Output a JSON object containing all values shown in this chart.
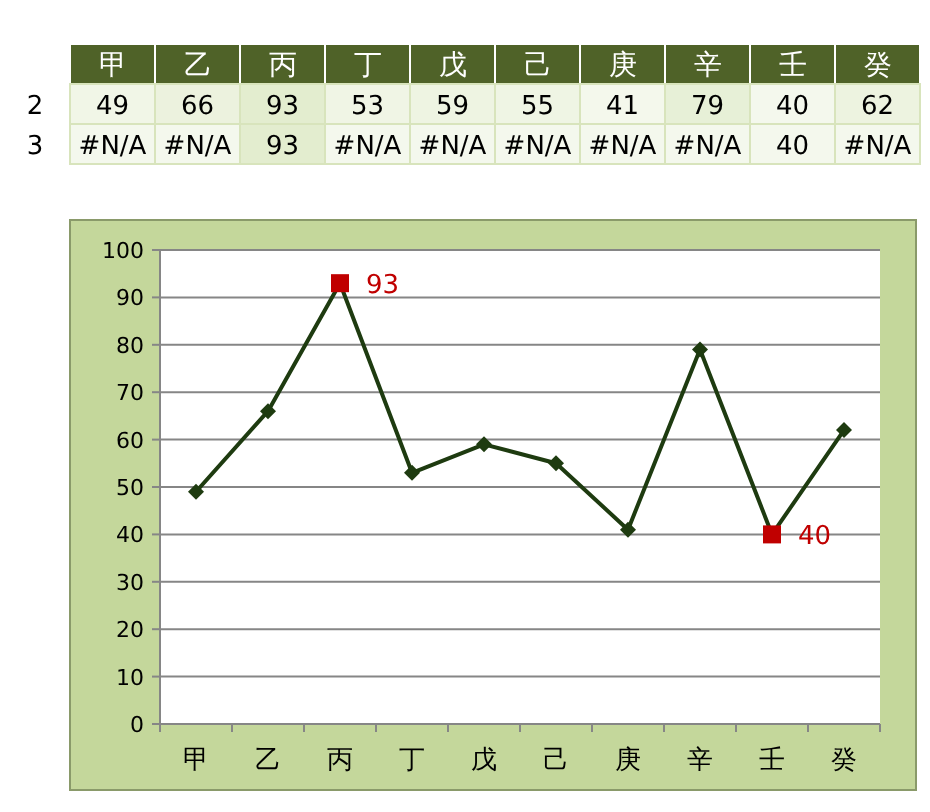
{
  "chart_data": [
    {
      "type": "heatmap",
      "categories": [
        "甲",
        "乙",
        "丙",
        "丁",
        "戊",
        "己",
        "庚",
        "辛",
        "壬",
        "癸"
      ],
      "y_categories": [
        "2",
        "3"
      ],
      "cells": [
        [
          49,
          66,
          93,
          53,
          59,
          55,
          41,
          79,
          40,
          62
        ],
        [
          null,
          null,
          93,
          null,
          null,
          null,
          null,
          null,
          40,
          null
        ]
      ],
      "cell_labels": [
        [
          "49",
          "66",
          "93",
          "53",
          "59",
          "55",
          "41",
          "79",
          "40",
          "62"
        ],
        [
          "#N/A",
          "#N/A",
          "93",
          "#N/A",
          "#N/A",
          "#N/A",
          "#N/A",
          "#N/A",
          "40",
          "#N/A"
        ]
      ]
    },
    {
      "type": "line",
      "categories": [
        "甲",
        "乙",
        "丙",
        "丁",
        "戊",
        "己",
        "庚",
        "辛",
        "壬",
        "癸"
      ],
      "series": [
        {
          "type": "line",
          "color": "#1e3b10",
          "marker": "diamond",
          "values": [
            49,
            66,
            93,
            53,
            59,
            55,
            41,
            79,
            40,
            62
          ]
        },
        {
          "type": "scatter",
          "color": "#c00000",
          "marker": "square",
          "values": [
            null,
            null,
            93,
            null,
            null,
            null,
            null,
            null,
            40,
            null
          ],
          "value_labels": [
            null,
            null,
            "93",
            null,
            null,
            null,
            null,
            null,
            "40",
            null
          ]
        }
      ],
      "ylim": [
        0,
        100
      ],
      "yticks": [
        0,
        10,
        20,
        30,
        40,
        50,
        60,
        70,
        80,
        90,
        100
      ],
      "grid": "y"
    }
  ]
}
